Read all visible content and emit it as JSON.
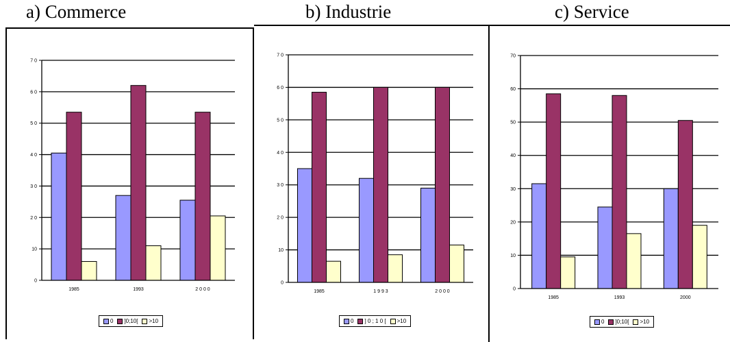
{
  "titles": {
    "a": "a) Commerce",
    "b": "b) Industrie",
    "c": "c) Service"
  },
  "colors": {
    "s0": "#9999ff",
    "s1": "#993366",
    "s2": "#ffffcc"
  },
  "chart_data": [
    {
      "type": "bar",
      "categories": [
        "1985",
        "1993",
        "2000"
      ],
      "series": [
        {
          "name": "0",
          "values": [
            40.5,
            27,
            25.5
          ]
        },
        {
          "name": "]0;10[",
          "values": [
            53.5,
            62,
            53.5
          ]
        },
        {
          "name": ">10",
          "values": [
            6,
            11,
            20.5
          ]
        }
      ],
      "title": "a) Commerce",
      "xlabel": "",
      "ylabel": "",
      "ylim": [
        0,
        70
      ],
      "yticks": [
        "0",
        "10",
        "2 0",
        "3 0",
        "4 0",
        "5 0",
        "6 0",
        "7 0"
      ],
      "xticks": [
        "1985",
        "1993",
        "2 0 0 0"
      ],
      "legend": [
        "0",
        "]0;10[",
        ">10"
      ],
      "grid": true,
      "legend_position": "bottom"
    },
    {
      "type": "bar",
      "categories": [
        "1985",
        "1993",
        "2000"
      ],
      "series": [
        {
          "name": "0",
          "values": [
            35,
            32,
            29
          ]
        },
        {
          "name": "]0;10[",
          "values": [
            58.5,
            60,
            60
          ]
        },
        {
          "name": ">10",
          "values": [
            6.5,
            8.5,
            11.5
          ]
        }
      ],
      "title": "b) Industrie",
      "xlabel": "",
      "ylabel": "",
      "ylim": [
        0,
        70
      ],
      "yticks": [
        "0",
        "10",
        "2 0",
        "3 0",
        "4 0",
        "5 0",
        "6 0",
        "7 0"
      ],
      "xticks": [
        "1985",
        "1 9 9 3",
        "2 0 0 0"
      ],
      "legend": [
        "0",
        "] 0 ; 1 0 [",
        ">10"
      ],
      "grid": true,
      "legend_position": "bottom"
    },
    {
      "type": "bar",
      "categories": [
        "1985",
        "1993",
        "2000"
      ],
      "series": [
        {
          "name": "0",
          "values": [
            31.5,
            24.5,
            30
          ]
        },
        {
          "name": "]0;10[",
          "values": [
            58.5,
            58,
            50.5
          ]
        },
        {
          "name": ">10",
          "values": [
            9.5,
            16.5,
            19
          ]
        }
      ],
      "title": "c) Service",
      "xlabel": "",
      "ylabel": "",
      "ylim": [
        0,
        70
      ],
      "yticks": [
        "0",
        "10",
        "20",
        "30",
        "40",
        "50",
        "60",
        "70"
      ],
      "xticks": [
        "1985",
        "1993",
        "2000"
      ],
      "legend": [
        "0",
        "]0;10[",
        ">10"
      ],
      "grid": true,
      "legend_position": "bottom"
    }
  ]
}
